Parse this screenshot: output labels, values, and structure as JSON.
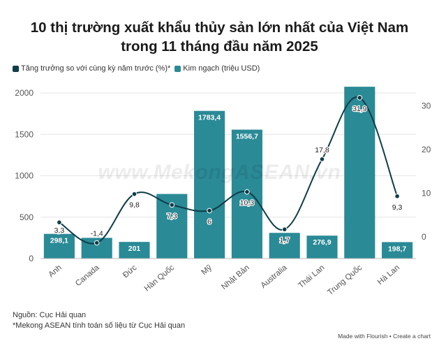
{
  "title_line1": "10 thị trường xuất khẩu thủy sản lớn nhất của Việt Nam",
  "title_line2": "trong 11 tháng đầu năm 2025",
  "legend": {
    "growth_label": "Tăng trưởng so với cùng kỳ năm trước (%)*",
    "value_label": "Kim ngạch (triệu USD)"
  },
  "watermark": "www.MekongASEAN.vn",
  "source": {
    "line1": "Nguồn: Cục Hải quan",
    "line2": "*Mekong ASEAN tính toán số liệu từ Cục Hải quan"
  },
  "footer": "Made with Flourish • Create a chart",
  "colors": {
    "bar": "#2a8a96",
    "line": "#0e3d48",
    "grid": "#e6e6e6",
    "bar_label": "#ffffff",
    "line_label": "#222222"
  },
  "chart_data": {
    "type": "bar+line",
    "categories": [
      "Anh",
      "Canada",
      "Đức",
      "Hàn Quốc",
      "Mỹ",
      "Nhật Bản",
      "Australia",
      "Thái Lan",
      "Trung Quốc",
      "Hà Lan"
    ],
    "series": [
      {
        "name": "Kim ngạch (triệu USD)",
        "type": "bar",
        "axis": "left",
        "values": [
          298.1,
          250,
          201,
          780,
          1783.4,
          1556.7,
          310,
          276.9,
          2075,
          198.7
        ],
        "labels": [
          "298,1",
          "",
          "201",
          "",
          "1783,4",
          "1556,7",
          "",
          "276,9",
          "",
          "198,7"
        ]
      },
      {
        "name": "Tăng trưởng so với cùng kỳ năm trước (%)*",
        "type": "line",
        "axis": "right",
        "values": [
          3.3,
          -1.4,
          9.8,
          7.3,
          6,
          10.3,
          1.7,
          17.8,
          31.9,
          9.3
        ],
        "labels": [
          "3,3",
          "-1,4",
          "9,8",
          "7,3",
          "6",
          "10,3",
          "1,7",
          "17,8",
          "31,9",
          "9,3"
        ]
      }
    ],
    "left_axis": {
      "min": 0,
      "max": 2000,
      "ticks": [
        0,
        500,
        1000,
        1500,
        2000
      ]
    },
    "right_axis": {
      "min": -5,
      "max": 33,
      "ticks": [
        0,
        10,
        20,
        30
      ]
    }
  }
}
